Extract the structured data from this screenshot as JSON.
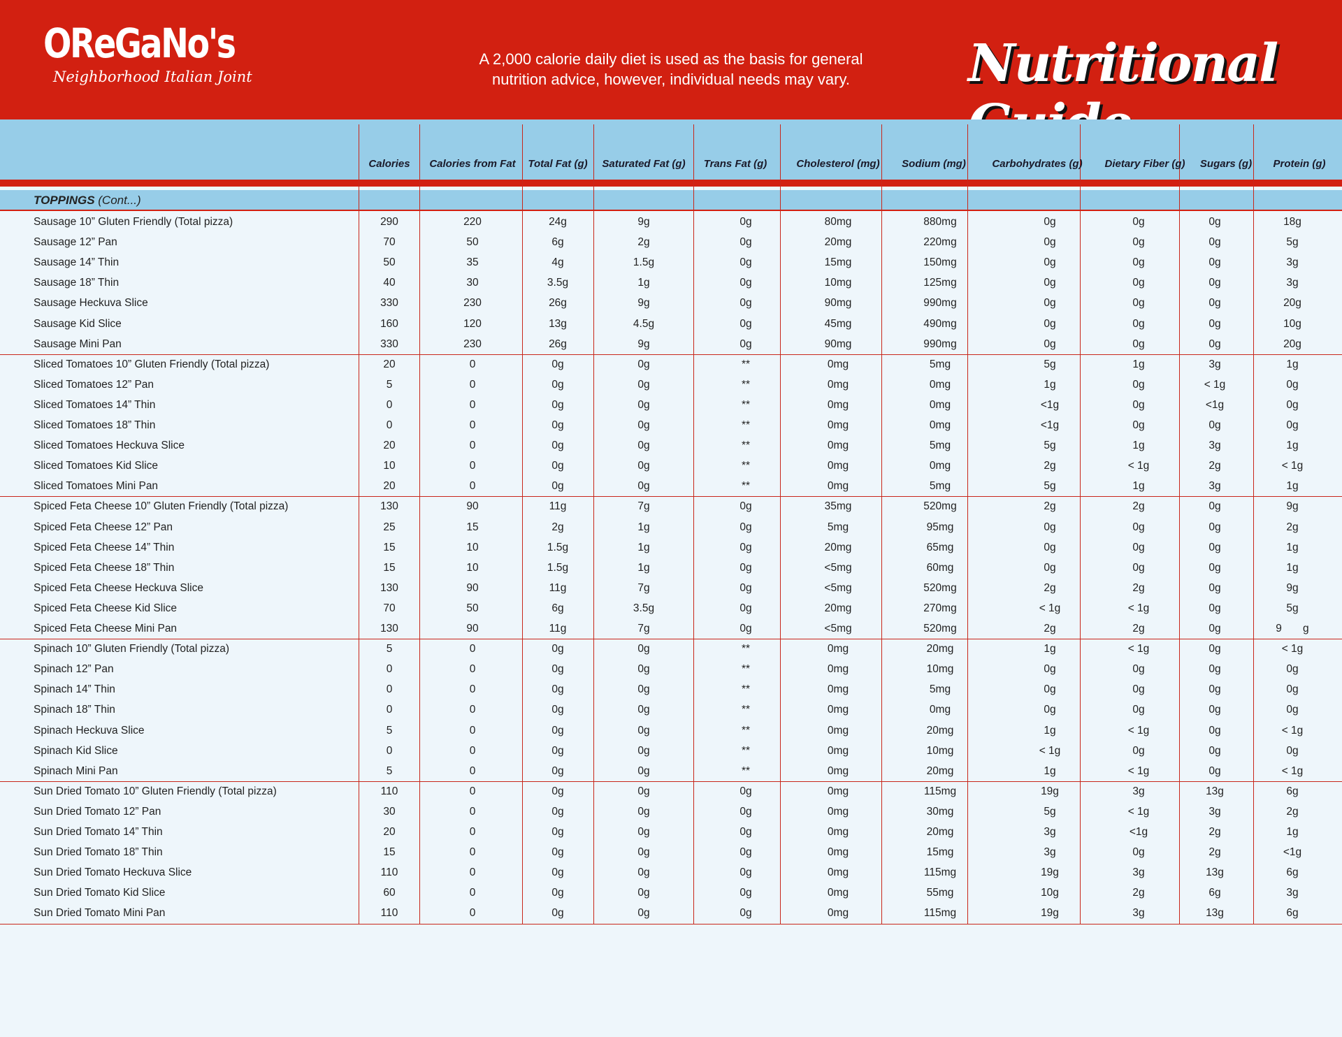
{
  "header": {
    "logo_brand": "OReGaNo's",
    "logo_tagline": "Neighborhood Italian Joint",
    "note_line1": "A 2,000 calorie daily diet is used as the basis for general",
    "note_line2": "nutrition advice, however, individual needs may vary.",
    "title": "Nutritional Guide",
    "brand_color": "#d22011",
    "band_color": "#97cde8"
  },
  "columns": [
    "Calories",
    "Calories from Fat",
    "Total Fat (g)",
    "Saturated Fat (g)",
    "Trans Fat (g)",
    "Cholesterol (mg)",
    "Sodium (mg)",
    "Carbohydrates (g)",
    "Dietary Fiber (g)",
    "Sugars (g)",
    "Protein (g)"
  ],
  "section": {
    "title": "TOPPINGS",
    "suffix": " (Cont...)"
  },
  "groups": [
    [
      [
        "Sausage 10” Gluten Friendly (Total pizza)",
        "290",
        "220",
        "24g",
        "9g",
        "0g",
        "80mg",
        "880mg",
        "0g",
        "0g",
        "0g",
        "18g"
      ],
      [
        "Sausage 12” Pan",
        "70",
        "50",
        "6g",
        "2g",
        "0g",
        "20mg",
        "220mg",
        "0g",
        "0g",
        "0g",
        "5g"
      ],
      [
        "Sausage 14” Thin",
        "50",
        "35",
        "4g",
        "1.5g",
        "0g",
        "15mg",
        "150mg",
        "0g",
        "0g",
        "0g",
        "3g"
      ],
      [
        "Sausage 18” Thin",
        "40",
        "30",
        "3.5g",
        "1g",
        "0g",
        "10mg",
        "125mg",
        "0g",
        "0g",
        "0g",
        "3g"
      ],
      [
        "Sausage Heckuva Slice",
        "330",
        "230",
        "26g",
        "9g",
        "0g",
        "90mg",
        "990mg",
        "0g",
        "0g",
        "0g",
        "20g"
      ],
      [
        "Sausage Kid Slice",
        "160",
        "120",
        "13g",
        "4.5g",
        "0g",
        "45mg",
        "490mg",
        "0g",
        "0g",
        "0g",
        "10g"
      ],
      [
        "Sausage Mini Pan",
        "330",
        "230",
        "26g",
        "9g",
        "0g",
        "90mg",
        "990mg",
        "0g",
        "0g",
        "0g",
        "20g"
      ]
    ],
    [
      [
        "Sliced Tomatoes 10” Gluten Friendly (Total pizza)",
        "20",
        "0",
        "0g",
        "0g",
        "**",
        "0mg",
        "5mg",
        "5g",
        "1g",
        "3g",
        "1g"
      ],
      [
        "Sliced Tomatoes 12” Pan",
        "5",
        "0",
        "0g",
        "0g",
        "**",
        "0mg",
        "0mg",
        "1g",
        "0g",
        "< 1g",
        "0g"
      ],
      [
        "Sliced Tomatoes 14” Thin",
        "0",
        "0",
        "0g",
        "0g",
        "**",
        "0mg",
        "0mg",
        "<1g",
        "0g",
        "<1g",
        "0g"
      ],
      [
        "Sliced Tomatoes 18” Thin",
        "0",
        "0",
        "0g",
        "0g",
        "**",
        "0mg",
        "0mg",
        "<1g",
        "0g",
        "0g",
        "0g"
      ],
      [
        "Sliced Tomatoes Heckuva Slice",
        "20",
        "0",
        "0g",
        "0g",
        "**",
        "0mg",
        "5mg",
        "5g",
        "1g",
        "3g",
        "1g"
      ],
      [
        "Sliced Tomatoes Kid Slice",
        "10",
        "0",
        "0g",
        "0g",
        "**",
        "0mg",
        "0mg",
        "2g",
        "< 1g",
        "2g",
        "< 1g"
      ],
      [
        "Sliced Tomatoes Mini Pan",
        "20",
        "0",
        "0g",
        "0g",
        "**",
        "0mg",
        "5mg",
        "5g",
        "1g",
        "3g",
        "1g"
      ]
    ],
    [
      [
        "Spiced Feta Cheese 10” Gluten Friendly (Total pizza)",
        "130",
        "90",
        "11g",
        "7g",
        "0g",
        "35mg",
        "520mg",
        "2g",
        "2g",
        "0g",
        "9g"
      ],
      [
        "Spiced Feta Cheese 12” Pan",
        "25",
        "15",
        "2g",
        "1g",
        "0g",
        "5mg",
        "95mg",
        "0g",
        "0g",
        "0g",
        "2g"
      ],
      [
        "Spiced Feta Cheese 14” Thin",
        "15",
        "10",
        "1.5g",
        "1g",
        "0g",
        "20mg",
        "65mg",
        "0g",
        "0g",
        "0g",
        "1g"
      ],
      [
        "Spiced Feta Cheese 18” Thin",
        "15",
        "10",
        "1.5g",
        "1g",
        "0g",
        "<5mg",
        "60mg",
        "0g",
        "0g",
        "0g",
        "1g"
      ],
      [
        "Spiced Feta Cheese Heckuva Slice",
        "130",
        "90",
        "11g",
        "7g",
        "0g",
        "<5mg",
        "520mg",
        "2g",
        "2g",
        "0g",
        "9g"
      ],
      [
        "Spiced Feta Cheese Kid Slice",
        "70",
        "50",
        "6g",
        "3.5g",
        "0g",
        "20mg",
        "270mg",
        "< 1g",
        "< 1g",
        "0g",
        "5g"
      ],
      [
        "Spiced Feta Cheese Mini Pan",
        "130",
        "90",
        "11g",
        "7g",
        "0g",
        "<5mg",
        "520mg",
        "2g",
        "2g",
        "0g",
        "9       g"
      ]
    ],
    [
      [
        "Spinach 10” Gluten Friendly (Total pizza)",
        "5",
        "0",
        "0g",
        "0g",
        "**",
        "0mg",
        "20mg",
        "1g",
        "< 1g",
        "0g",
        "< 1g"
      ],
      [
        "Spinach 12” Pan",
        "0",
        "0",
        "0g",
        "0g",
        "**",
        "0mg",
        "10mg",
        "0g",
        "0g",
        "0g",
        "0g"
      ],
      [
        "Spinach 14” Thin",
        "0",
        "0",
        "0g",
        "0g",
        "**",
        "0mg",
        "5mg",
        "0g",
        "0g",
        "0g",
        "0g"
      ],
      [
        "Spinach 18” Thin",
        "0",
        "0",
        "0g",
        "0g",
        "**",
        "0mg",
        "0mg",
        "0g",
        "0g",
        "0g",
        "0g"
      ],
      [
        "Spinach Heckuva Slice",
        "5",
        "0",
        "0g",
        "0g",
        "**",
        "0mg",
        "20mg",
        "1g",
        "< 1g",
        "0g",
        "< 1g"
      ],
      [
        "Spinach Kid Slice",
        "0",
        "0",
        "0g",
        "0g",
        "**",
        "0mg",
        "10mg",
        "< 1g",
        "0g",
        "0g",
        "0g"
      ],
      [
        "Spinach Mini Pan",
        "5",
        "0",
        "0g",
        "0g",
        "**",
        "0mg",
        "20mg",
        "1g",
        "< 1g",
        "0g",
        "< 1g"
      ]
    ],
    [
      [
        "Sun Dried Tomato 10” Gluten Friendly (Total pizza)",
        "110",
        "0",
        "0g",
        "0g",
        "0g",
        "0mg",
        "115mg",
        "19g",
        "3g",
        "13g",
        "6g"
      ],
      [
        "Sun Dried Tomato 12” Pan",
        "30",
        "0",
        "0g",
        "0g",
        "0g",
        "0mg",
        "30mg",
        "5g",
        "< 1g",
        "3g",
        "2g"
      ],
      [
        "Sun Dried Tomato 14” Thin",
        "20",
        "0",
        "0g",
        "0g",
        "0g",
        "0mg",
        "20mg",
        "3g",
        "<1g",
        "2g",
        "1g"
      ],
      [
        "Sun Dried Tomato 18” Thin",
        "15",
        "0",
        "0g",
        "0g",
        "0g",
        "0mg",
        "15mg",
        "3g",
        "0g",
        "2g",
        "<1g"
      ],
      [
        "Sun Dried Tomato Heckuva Slice",
        "110",
        "0",
        "0g",
        "0g",
        "0g",
        "0mg",
        "115mg",
        "19g",
        "3g",
        "13g",
        "6g"
      ],
      [
        "Sun Dried Tomato Kid Slice",
        "60",
        "0",
        "0g",
        "0g",
        "0g",
        "0mg",
        "55mg",
        "10g",
        "2g",
        "6g",
        "3g"
      ],
      [
        "Sun Dried Tomato Mini Pan",
        "110",
        "0",
        "0g",
        "0g",
        "0g",
        "0mg",
        "115mg",
        "19g",
        "3g",
        "13g",
        "6g"
      ]
    ]
  ]
}
